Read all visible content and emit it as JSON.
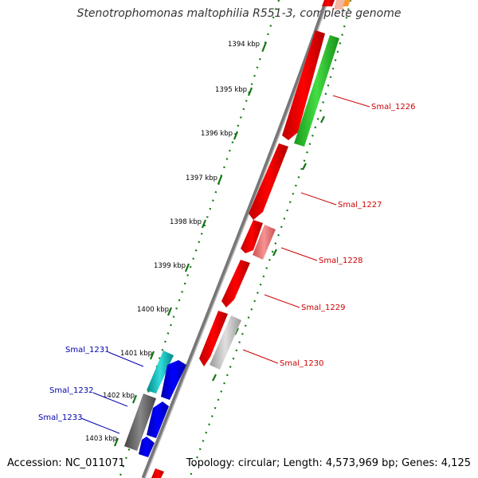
{
  "title": "Stenotrophomonas maltophilia R551-3, complete genome",
  "footer": {
    "accession": "Accession: NC_011071",
    "stats": "Topology: circular; Length: 4,573,969 bp; Genes: 4,125"
  },
  "colors": {
    "forward_gene": "#ff0000",
    "reverse_gene": "#0000ff",
    "green_feature": "#22cc22",
    "pink_feature": "#f08080",
    "grey_feature": "#bbbbbb",
    "dark_grey_feature": "#666666",
    "cyan_feature": "#00bbbb",
    "tick_dots": "#117711",
    "label_forward": "#cc0000",
    "label_reverse": "#0000aa"
  },
  "ticks": [
    "1394 kbp",
    "1395 kbp",
    "1396 kbp",
    "1397 kbp",
    "1398 kbp",
    "1399 kbp",
    "1400 kbp",
    "1401 kbp",
    "1402 kbp",
    "1403 kbp"
  ],
  "forward_labels": [
    "Smal_1226",
    "Smal_1227",
    "Smal_1228",
    "Smal_1229",
    "Smal_1230"
  ],
  "reverse_labels": [
    "Smal_1231",
    "Smal_1232",
    "Smal_1233"
  ]
}
